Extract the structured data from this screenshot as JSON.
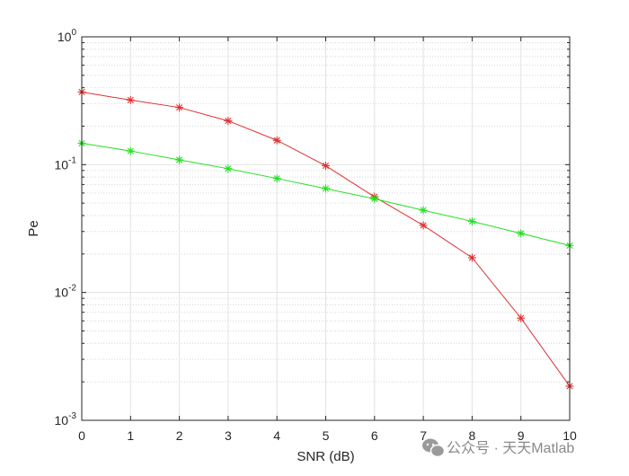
{
  "chart_data": {
    "type": "line",
    "xlabel": "SNR (dB)",
    "ylabel": "Pe",
    "yscale": "log",
    "xlim": [
      0,
      10
    ],
    "ylim": [
      0.001,
      1
    ],
    "grid": true,
    "x": [
      0,
      1,
      2,
      3,
      4,
      5,
      6,
      7,
      8,
      9,
      10
    ],
    "x_tick_labels": [
      "0",
      "1",
      "2",
      "3",
      "4",
      "5",
      "6",
      "7",
      "8",
      "9",
      "10"
    ],
    "y_ticks": [
      {
        "value": 1,
        "base": "10",
        "exp": "0"
      },
      {
        "value": 0.1,
        "base": "10",
        "exp": "-1"
      },
      {
        "value": 0.01,
        "base": "10",
        "exp": "-2"
      },
      {
        "value": 0.001,
        "base": "10",
        "exp": "-3"
      }
    ],
    "series": [
      {
        "color": "#e03030",
        "marker": "asterisk",
        "values": [
          0.37,
          0.32,
          0.28,
          0.22,
          0.155,
          0.098,
          0.056,
          0.0335,
          0.0187,
          0.0063,
          0.00185
        ]
      },
      {
        "color": "#22e022",
        "marker": "asterisk",
        "values": [
          0.147,
          0.128,
          0.109,
          0.093,
          0.078,
          0.065,
          0.054,
          0.044,
          0.036,
          0.029,
          0.0233
        ]
      }
    ]
  },
  "watermark": {
    "text": "公众号 · 天天Matlab",
    "icon": "wechat-icon"
  }
}
